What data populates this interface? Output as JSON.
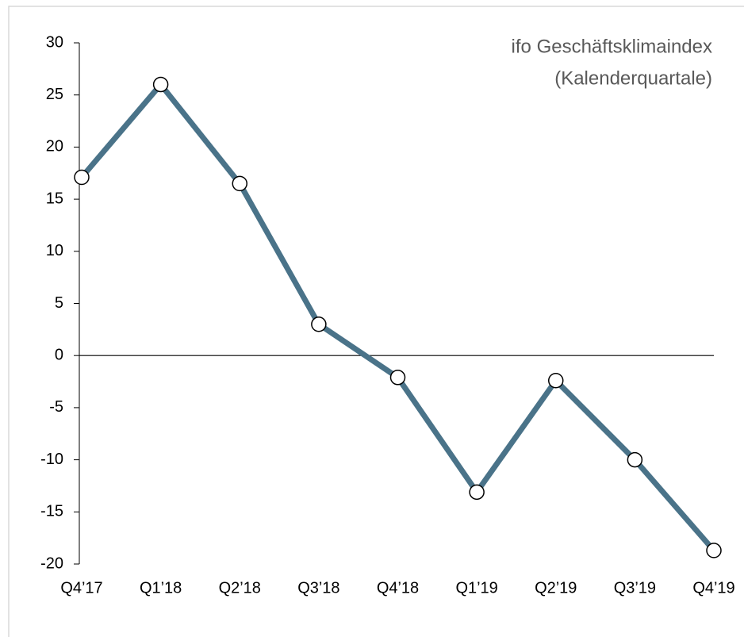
{
  "chart_data": {
    "type": "line",
    "title": "ifo Geschäftsklimaindex",
    "subtitle": "(Kalenderquartale)",
    "categories": [
      "Q4’17",
      "Q1’18",
      "Q2’18",
      "Q3’18",
      "Q4’18",
      "Q1’19",
      "Q2’19",
      "Q3’19",
      "Q4’19"
    ],
    "series": [
      {
        "color": "#4a7389",
        "values": [
          17.1,
          26.0,
          16.5,
          3.0,
          -2.1,
          -13.1,
          -2.4,
          -10.0,
          -18.7
        ]
      }
    ],
    "ylim": [
      -20,
      30
    ],
    "yticks": [
      -20,
      -15,
      -10,
      -5,
      0,
      5,
      10,
      15,
      20,
      25,
      30
    ]
  }
}
